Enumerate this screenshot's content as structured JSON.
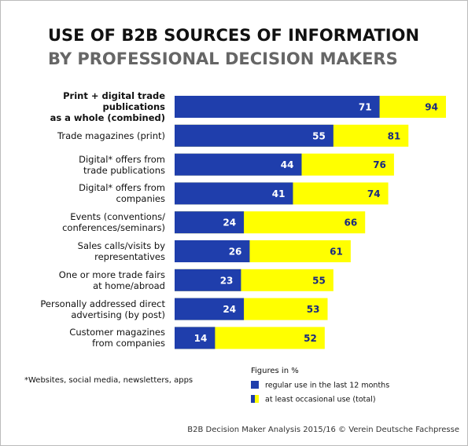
{
  "chart_data": {
    "type": "bar",
    "bar_mode": "overlap",
    "title": "USE OF B2B SOURCES OF INFORMATION",
    "subtitle": "BY PROFESSIONAL DECISION MAKERS",
    "categories": [
      "Print + digital trade publications\nas a whole (combined)",
      "Trade magazines (print)",
      "Digital* offers from\ntrade publications",
      "Digital* offers from\ncompanies",
      "Events (conventions/\nconferences/seminars)",
      "Sales calls/visits by\nrepresentatives",
      "One or more trade fairs\nat home/abroad",
      "Personally addressed direct\nadvertising (by post)",
      "Customer magazines\nfrom companies"
    ],
    "series": [
      {
        "name": "at least occasional use (total)",
        "color": "#ffff00",
        "label_color": "#1a2a80",
        "values": [
          94,
          81,
          76,
          74,
          66,
          61,
          55,
          53,
          52
        ]
      },
      {
        "name": "regular use in the last 12 months",
        "color": "#1f3eac",
        "label_color": "#ffffff",
        "values": [
          71,
          55,
          44,
          41,
          24,
          26,
          23,
          24,
          14
        ]
      }
    ],
    "legend_title": "Figures in %",
    "footnote": "*Websites, social media, newsletters, apps",
    "source": "B2B Decision Maker Analysis 2015/16 © Verein Deutsche Fachpresse"
  }
}
